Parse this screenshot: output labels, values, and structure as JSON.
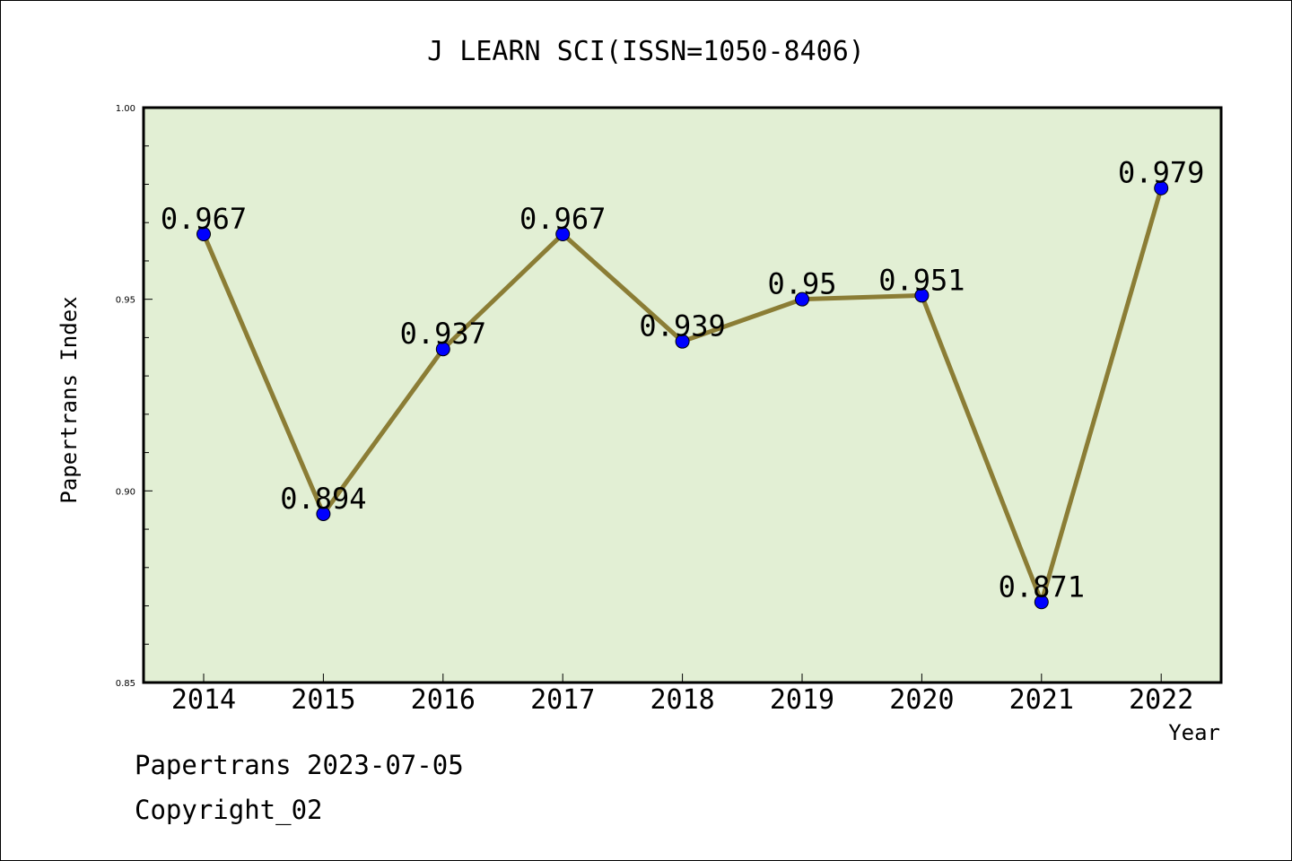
{
  "chart_data": {
    "type": "line",
    "title": "J LEARN SCI(ISSN=1050-8406)",
    "xlabel": "Year",
    "ylabel": "Papertrans Index",
    "categories": [
      "2014",
      "2015",
      "2016",
      "2017",
      "2018",
      "2019",
      "2020",
      "2021",
      "2022"
    ],
    "series": [
      {
        "values": [
          0.967,
          0.894,
          0.937,
          0.967,
          0.939,
          0.95,
          0.951,
          0.871,
          0.979
        ],
        "labels": [
          "0.967",
          "0.894",
          "0.937",
          "0.967",
          "0.939",
          "0.95",
          "0.951",
          "0.871",
          "0.979"
        ]
      }
    ],
    "ylim": [
      0.85,
      1.0
    ],
    "yticks": [
      "0.85",
      "0.90",
      "0.95",
      "1.00"
    ],
    "grid": false,
    "colors": {
      "plot_background": "#e2efd4",
      "line": "#8b7d35",
      "marker": "#0000ff"
    }
  },
  "footer": {
    "line1": "Papertrans 2023-07-05",
    "line2": "Copyright_02"
  }
}
